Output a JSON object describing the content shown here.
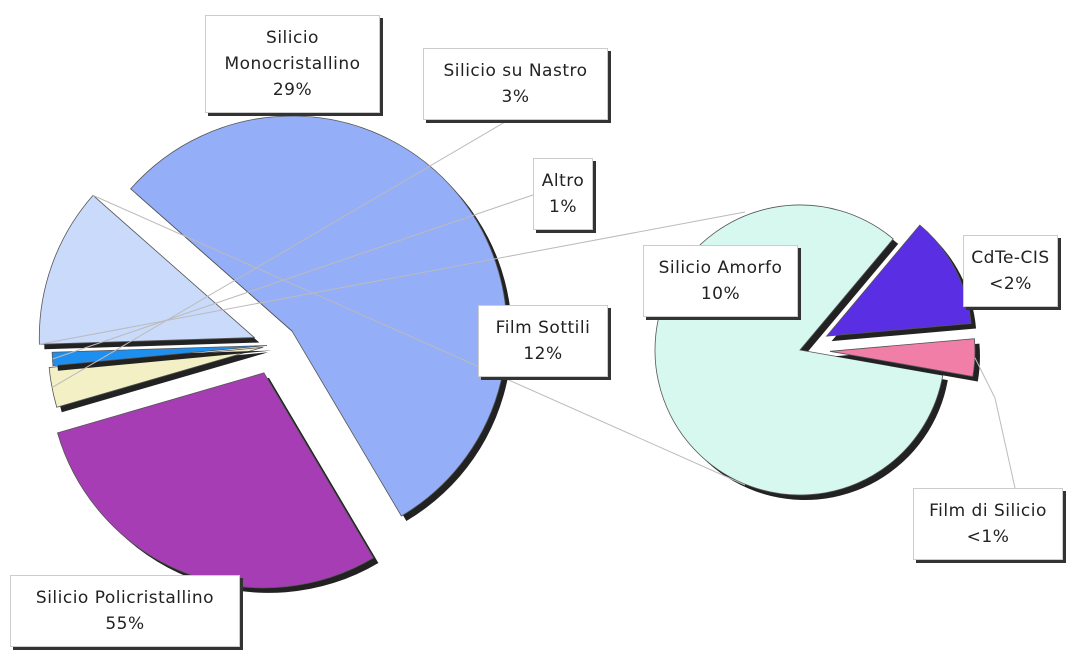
{
  "chart_data": [
    {
      "type": "pie",
      "categories": [
        "Silicio Policristallino",
        "Silicio Monocristallino",
        "Silicio su Nastro",
        "Altro",
        "Film Sottili"
      ],
      "values": [
        55,
        29,
        3,
        1,
        12
      ],
      "value_labels": [
        "55%",
        "29%",
        "3%",
        "1%",
        "12%"
      ],
      "colors": [
        "#94aef7",
        "#a63db5",
        "#f2f0c4",
        "#1f8fef",
        "#c9dafa"
      ]
    },
    {
      "type": "pie",
      "categories": [
        "Silicio Amorfo",
        "CdTe-CIS",
        "Film di Silicio"
      ],
      "values": [
        10,
        1.5,
        0.5
      ],
      "value_labels": [
        "10%",
        "<2%",
        "<1%"
      ],
      "colors": [
        "#d6f8ee",
        "#5a2ee3",
        "#f07ea7"
      ]
    }
  ]
}
